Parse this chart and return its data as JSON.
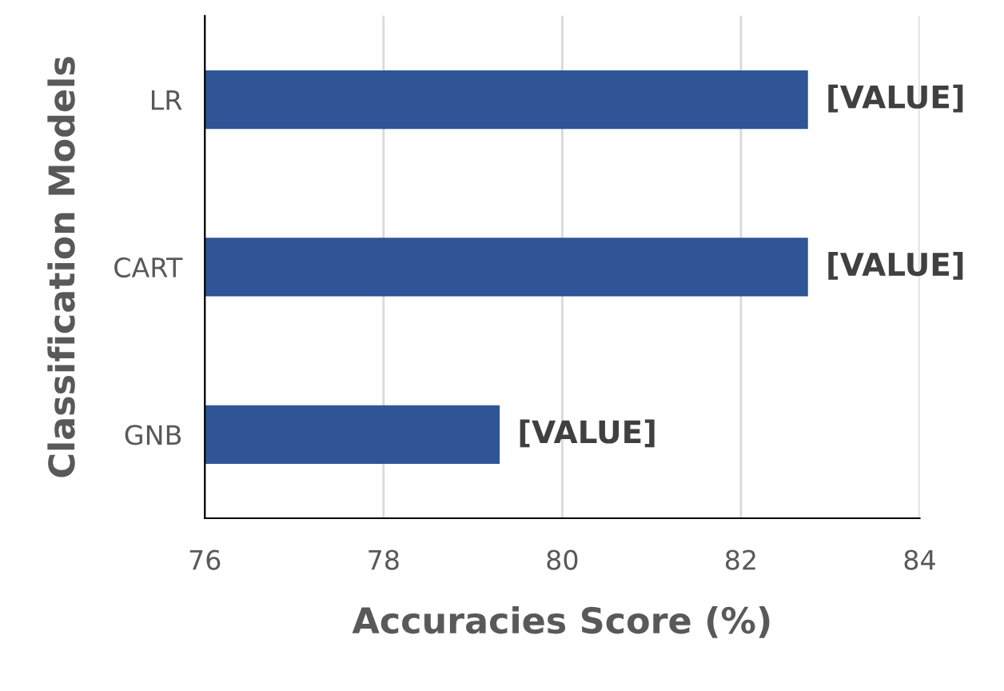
{
  "chart_data": {
    "type": "bar",
    "orientation": "horizontal",
    "xlabel": "Accuracies Score (%)",
    "ylabel": "Classification Models",
    "categories": [
      "LR",
      "CART",
      "GNB"
    ],
    "values": [
      82.75,
      82.75,
      79.3
    ],
    "color": "#2f5597",
    "value_labels": [
      "[VALUE]",
      "[VALUE]",
      "[VALUE]"
    ],
    "xlim": [
      76,
      84
    ],
    "xticks": [
      76,
      78,
      80,
      82,
      84
    ],
    "grid": "x"
  }
}
